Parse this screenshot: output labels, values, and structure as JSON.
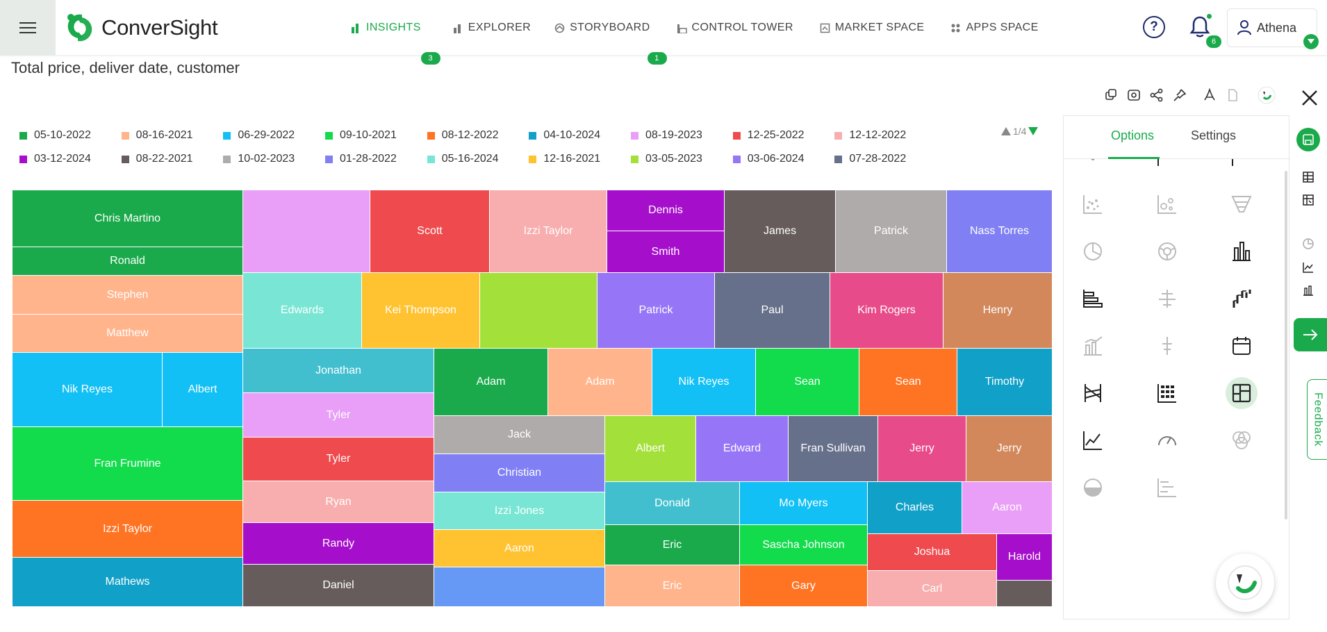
{
  "brand": {
    "name": "ConverSight",
    "green": "#1aaa4b",
    "dark": "#222222"
  },
  "nav": {
    "items": [
      {
        "label": "INSIGHTS",
        "icon": "bar-chart-icon",
        "badge": "3",
        "active": true
      },
      {
        "label": "EXPLORER",
        "icon": "explorer-icon",
        "badge": ""
      },
      {
        "label": "STORYBOARD",
        "icon": "storyboard-icon",
        "badge": "1"
      },
      {
        "label": "CONTROL TOWER",
        "icon": "control-tower-icon",
        "badge": ""
      },
      {
        "label": "MARKET SPACE",
        "icon": "market-space-icon",
        "badge": ""
      },
      {
        "label": "APPS SPACE",
        "icon": "apps-grid-icon",
        "badge": ""
      }
    ],
    "help_label": "?",
    "notifications_count": "6",
    "user_name": "Athena"
  },
  "page": {
    "title": "Total price, deliver date, customer"
  },
  "legend": {
    "pager": "1/4",
    "rows": [
      [
        {
          "label": "05-10-2022",
          "color": "#1aaa4b"
        },
        {
          "label": "08-16-2021",
          "color": "#ffb48c"
        },
        {
          "label": "06-29-2022",
          "color": "#12c0f5"
        },
        {
          "label": "09-10-2021",
          "color": "#12dc4c"
        },
        {
          "label": "08-12-2022",
          "color": "#ff7423"
        },
        {
          "label": "04-10-2024",
          "color": "#11a0c8"
        },
        {
          "label": "08-19-2023",
          "color": "#e99ff7"
        },
        {
          "label": "12-25-2022",
          "color": "#ef4b4f"
        },
        {
          "label": "12-12-2022",
          "color": "#f8aeae"
        }
      ],
      [
        {
          "label": "03-12-2024",
          "color": "#a50ecb"
        },
        {
          "label": "08-22-2021",
          "color": "#675c5c"
        },
        {
          "label": "10-02-2023",
          "color": "#b0abab"
        },
        {
          "label": "01-28-2022",
          "color": "#8080f4"
        },
        {
          "label": "05-16-2024",
          "color": "#79e6d5"
        },
        {
          "label": "12-16-2021",
          "color": "#ffc332"
        },
        {
          "label": "03-05-2023",
          "color": "#a4e03a"
        },
        {
          "label": "03-06-2024",
          "color": "#9675f7"
        },
        {
          "label": "07-28-2022",
          "color": "#66708a"
        }
      ]
    ]
  },
  "treemap": {
    "cells": [
      {
        "label": "Chris Martino",
        "color": "#1aaa4b"
      },
      {
        "label": "Ronald",
        "color": "#1aaa4b"
      },
      {
        "label": "Stephen",
        "color": "#ffb48c"
      },
      {
        "label": "Matthew",
        "color": "#ffb48c"
      },
      {
        "label": "Nik Reyes",
        "color": "#12c0f5"
      },
      {
        "label": "Albert",
        "color": "#12c0f5"
      },
      {
        "label": "Fran Frumine",
        "color": "#12dc4c"
      },
      {
        "label": "Izzi Taylor",
        "color": "#ff7423"
      },
      {
        "label": "Mathews",
        "color": "#11a0c8"
      },
      {
        "label": "",
        "color": "#e99ff7"
      },
      {
        "label": "Scott",
        "color": "#ef4b4f"
      },
      {
        "label": "Izzi Taylor",
        "color": "#f8aeae"
      },
      {
        "label": "Dennis",
        "color": "#a50ecb"
      },
      {
        "label": "Smith",
        "color": "#a50ecb"
      },
      {
        "label": "James",
        "color": "#675c5c"
      },
      {
        "label": "Patrick",
        "color": "#b0abab"
      },
      {
        "label": "Nass Torres",
        "color": "#8080f4"
      },
      {
        "label": "Edwards",
        "color": "#79e6d5"
      },
      {
        "label": "Kei Thompson",
        "color": "#ffc332"
      },
      {
        "label": "",
        "color": "#a4e03a"
      },
      {
        "label": "Patrick",
        "color": "#9675f7"
      },
      {
        "label": "Paul",
        "color": "#66708a"
      },
      {
        "label": "Kim Rogers",
        "color": "#e84b8a"
      },
      {
        "label": "Henry",
        "color": "#d2885b"
      },
      {
        "label": "Jonathan",
        "color": "#42bfcf"
      },
      {
        "label": "Adam",
        "color": "#1aaa4b"
      },
      {
        "label": "Adam",
        "color": "#ffb48c"
      },
      {
        "label": "Nik Reyes",
        "color": "#12c0f5"
      },
      {
        "label": "Sean",
        "color": "#12dc4c"
      },
      {
        "label": "Sean",
        "color": "#ff7423"
      },
      {
        "label": "Timothy",
        "color": "#11a0c8"
      },
      {
        "label": "Tyler",
        "color": "#e99ff7"
      },
      {
        "label": "Tyler",
        "color": "#ef4b4f"
      },
      {
        "label": "Ryan",
        "color": "#f8aeae"
      },
      {
        "label": "Randy",
        "color": "#a50ecb"
      },
      {
        "label": "Daniel",
        "color": "#675c5c"
      },
      {
        "label": "Jack",
        "color": "#b0abab"
      },
      {
        "label": "Christian",
        "color": "#8080f4"
      },
      {
        "label": "Izzi Jones",
        "color": "#79e6d5"
      },
      {
        "label": "Aaron",
        "color": "#ffc332"
      },
      {
        "label": "",
        "color": "#6699f5"
      },
      {
        "label": "Albert",
        "color": "#a4e03a"
      },
      {
        "label": "Edward",
        "color": "#9675f7"
      },
      {
        "label": "Fran Sullivan",
        "color": "#66708a"
      },
      {
        "label": "Jerry",
        "color": "#e84b8a"
      },
      {
        "label": "Jerry",
        "color": "#d2885b"
      },
      {
        "label": "Donald",
        "color": "#42bfcf"
      },
      {
        "label": "Eric",
        "color": "#1aaa4b"
      },
      {
        "label": "Eric",
        "color": "#ffb48c"
      },
      {
        "label": "Mo Myers",
        "color": "#12c0f5"
      },
      {
        "label": "Sascha Johnson",
        "color": "#12dc4c"
      },
      {
        "label": "Gary",
        "color": "#ff7423"
      },
      {
        "label": "Charles",
        "color": "#11a0c8"
      },
      {
        "label": "Aaron",
        "color": "#e99ff7"
      },
      {
        "label": "Joshua",
        "color": "#ef4b4f"
      },
      {
        "label": "Carl",
        "color": "#f8aeae"
      },
      {
        "label": "Harold",
        "color": "#a50ecb"
      },
      {
        "label": "",
        "color": "#675c5c"
      }
    ]
  },
  "panel": {
    "tabs": [
      "Options",
      "Settings"
    ],
    "chart_types": [
      "collapse-chevron-icon",
      "horizontal-bar-icon",
      "stacked-horizontal-bar-icon",
      "scatter-icon",
      "bubble-icon",
      "funnel-icon",
      "pie-icon",
      "donut-icon",
      "bar-chart-icon",
      "horizontal-bar-chart-icon",
      "butterfly-chart-icon",
      "waterfall-icon",
      "combo-chart-icon",
      "box-plot-icon",
      "calendar-icon",
      "parallel-chart-icon",
      "heatmap-icon",
      "treemap-icon",
      "line-chart-icon",
      "gauge-icon",
      "venn-icon",
      "half-donut-icon",
      "gantt-icon"
    ],
    "selected_chart": "treemap-icon"
  },
  "feedback_label": "Feedback"
}
